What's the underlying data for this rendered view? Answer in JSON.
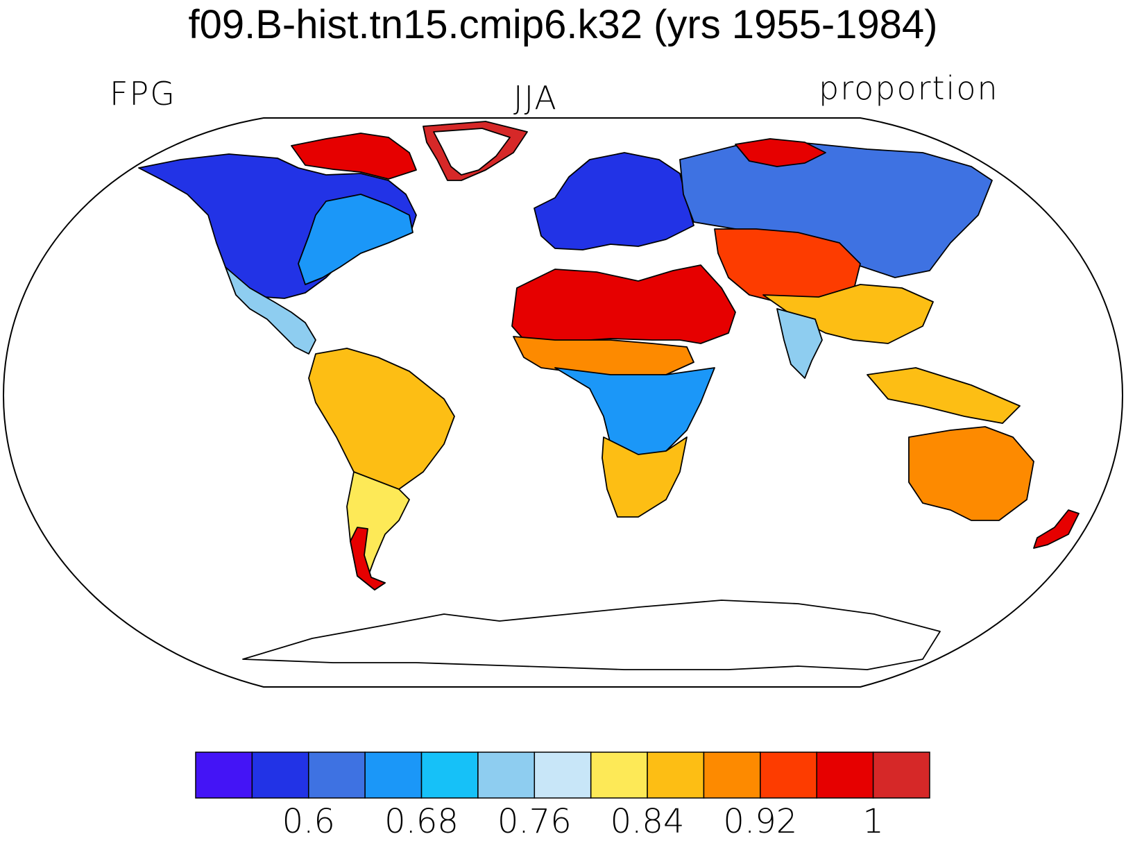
{
  "figure": {
    "title": "f09.B-hist.tn15.cmip6.k32 (yrs 1955-1984)",
    "left_label": "FPG",
    "center_label": "JJA",
    "right_label": "proportion",
    "projection": "Robinson"
  },
  "colorbar": {
    "colors": [
      "#4414f6",
      "#2233e6",
      "#3e72e2",
      "#1b97f8",
      "#16c1f8",
      "#8ecdf0",
      "#c8e6f8",
      "#fde957",
      "#fdbe14",
      "#fd8a00",
      "#fd3c00",
      "#e60000",
      "#d62828"
    ],
    "tick_labels": [
      "0.6",
      "0.68",
      "0.76",
      "0.84",
      "0.92",
      "1"
    ]
  },
  "regions": [
    {
      "name": "North America (north/west)",
      "color": "#2233e6"
    },
    {
      "name": "Eastern North America",
      "color": "#1b97f8"
    },
    {
      "name": "Canadian Arctic Islands",
      "color": "#e60000"
    },
    {
      "name": "Greenland margin",
      "color": "#d62828"
    },
    {
      "name": "Mexico / Central America",
      "color": "#8ecdf0"
    },
    {
      "name": "South America (north)",
      "color": "#fdbe14"
    },
    {
      "name": "South America (south)",
      "color": "#fde957"
    },
    {
      "name": "Patagonia tip",
      "color": "#e60000"
    },
    {
      "name": "Europe / Scandinavia",
      "color": "#2233e6"
    },
    {
      "name": "Siberia",
      "color": "#3e72e2"
    },
    {
      "name": "Arctic Russia coast",
      "color": "#e60000"
    },
    {
      "name": "Sahara / Arabia",
      "color": "#e60000"
    },
    {
      "name": "Sahel",
      "color": "#fd8a00"
    },
    {
      "name": "Central Africa",
      "color": "#1b97f8"
    },
    {
      "name": "Southern Africa",
      "color": "#fdbe14"
    },
    {
      "name": "Central Asia desert",
      "color": "#fd3c00"
    },
    {
      "name": "Tibet / China",
      "color": "#fdbe14"
    },
    {
      "name": "India",
      "color": "#8ecdf0"
    },
    {
      "name": "Southeast Asia islands",
      "color": "#fdbe14"
    },
    {
      "name": "Australia",
      "color": "#fd8a00"
    },
    {
      "name": "New Zealand",
      "color": "#e60000"
    },
    {
      "name": "Antarctica",
      "color": "#ffffff"
    }
  ]
}
